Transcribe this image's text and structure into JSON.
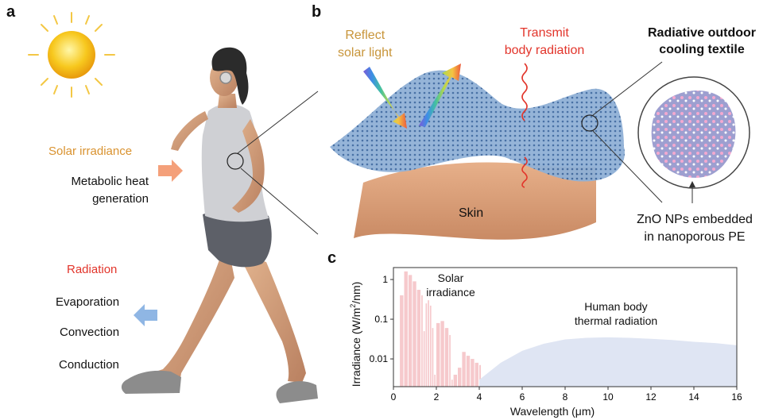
{
  "panels": {
    "a": "a",
    "b": "b",
    "c": "c"
  },
  "panel_a": {
    "solar_irradiance": "Solar irradiance",
    "metabolic_line1": "Metabolic heat",
    "metabolic_line2": "generation",
    "radiation": "Radiation",
    "evaporation": "Evaporation",
    "convection": "Convection",
    "conduction": "Conduction"
  },
  "panel_b": {
    "reflect_line1": "Reflect",
    "reflect_line2": "solar light",
    "transmit_line1": "Transmit",
    "transmit_line2": "body radiation",
    "title_line1": "Radiative outdoor",
    "title_line2": "cooling textile",
    "skin": "Skin",
    "zno_line1": "ZnO NPs embedded",
    "zno_line2": "in nanoporous PE"
  },
  "chart_data": {
    "type": "area",
    "xlabel": "Wavelength (μm)",
    "ylabel_pre": "Irradiance (W/m",
    "ylabel_sup": "2",
    "ylabel_post": "/nm)",
    "xlim": [
      0,
      16
    ],
    "ylim": [
      0.002,
      2
    ],
    "yscale": "log",
    "xticks": [
      0,
      2,
      4,
      6,
      8,
      10,
      12,
      14,
      16
    ],
    "yticks": [
      1,
      0.1,
      0.01
    ],
    "ytick_labels": [
      "1",
      "0.1",
      "0.01"
    ],
    "annotations": {
      "solar_line1": "Solar",
      "solar_line2": "irradiance",
      "body_line1": "Human body",
      "body_line2": "thermal radiation"
    },
    "series": [
      {
        "color": "#f6c9cc",
        "x": [
          0.3,
          0.5,
          0.7,
          0.9,
          1.1,
          1.3,
          1.4,
          1.5,
          1.6,
          1.7,
          1.8,
          1.9,
          2.0,
          2.2,
          2.4,
          2.6,
          2.7,
          2.8,
          3.0,
          3.2,
          3.4,
          3.6,
          3.8,
          4.0
        ],
        "y": [
          0.4,
          1.6,
          1.3,
          0.9,
          0.55,
          0.4,
          0.05,
          0.25,
          0.3,
          0.22,
          0.06,
          0.004,
          0.08,
          0.09,
          0.06,
          0.04,
          0.003,
          0.004,
          0.006,
          0.015,
          0.012,
          0.01,
          0.008,
          0.007
        ]
      },
      {
        "color": "#dfe5f3",
        "x": [
          4,
          5,
          6,
          7,
          8,
          9,
          10,
          11,
          12,
          13,
          14,
          15,
          16
        ],
        "y": [
          0.003,
          0.008,
          0.016,
          0.024,
          0.031,
          0.034,
          0.035,
          0.034,
          0.032,
          0.03,
          0.027,
          0.025,
          0.022
        ]
      }
    ]
  },
  "colors": {
    "solar_arrow": "#f4a07a",
    "cool_arrow": "#8fb6e4",
    "skin": "#d9a07a",
    "textile": "#8fb0d6",
    "radiation_wave": "#e2352b"
  }
}
